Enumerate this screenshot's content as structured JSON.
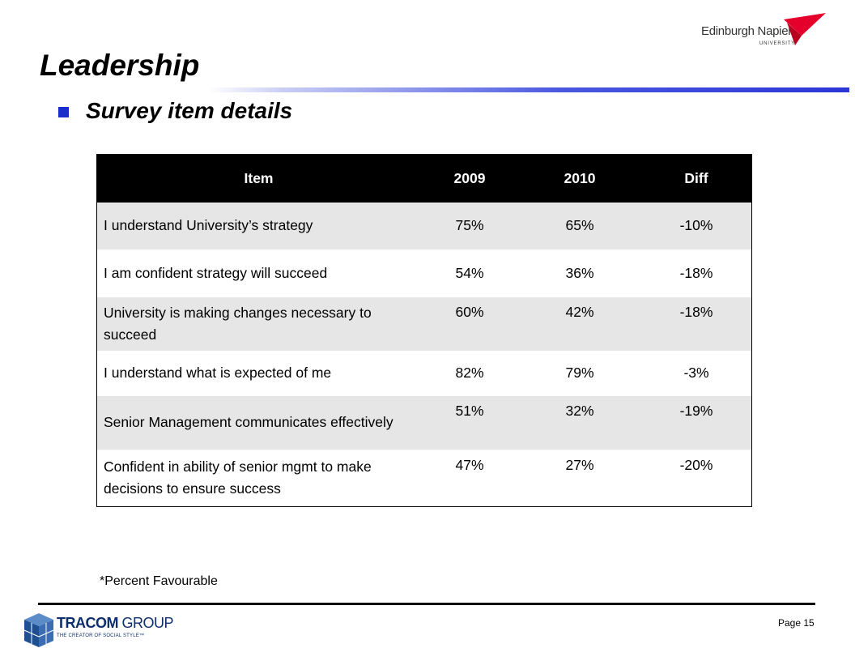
{
  "header": {
    "title": "Leadership",
    "subtitle": "Survey item details",
    "logo": {
      "name": "Edinburgh Napier",
      "sub": "UNIVERSITY"
    }
  },
  "table": {
    "columns": [
      "Item",
      "2009",
      "2010",
      "Diff"
    ],
    "rows": [
      {
        "item": "I understand University’s strategy",
        "y2009": "75%",
        "y2010": "65%",
        "diff": "-10%"
      },
      {
        "item": "I am confident strategy will succeed",
        "y2009": "54%",
        "y2010": "36%",
        "diff": "-18%"
      },
      {
        "item": "University is making changes necessary to succeed",
        "y2009": "60%",
        "y2010": "42%",
        "diff": "-18%"
      },
      {
        "item": "I understand what is expected of me",
        "y2009": "82%",
        "y2010": "79%",
        "diff": "-3%"
      },
      {
        "item": "Senior Management communicates effectively",
        "y2009": "51%",
        "y2010": "32%",
        "diff": "-19%"
      },
      {
        "item": "Confident in ability of senior mgmt to make decisions to ensure success",
        "y2009": "47%",
        "y2010": "27%",
        "diff": "-20%"
      }
    ]
  },
  "footnote": "*Percent Favourable",
  "footer": {
    "page": "Page 15",
    "logo": {
      "name_bold": "TRACOM",
      "name_rest": " GROUP",
      "tagline": "THE CREATOR OF SOCIAL STYLE™"
    }
  },
  "colors": {
    "bullet": "#1a2fc9",
    "header_bg": "#000000",
    "row_shade": "#e6e6e6",
    "napier_red": "#e4002b"
  }
}
